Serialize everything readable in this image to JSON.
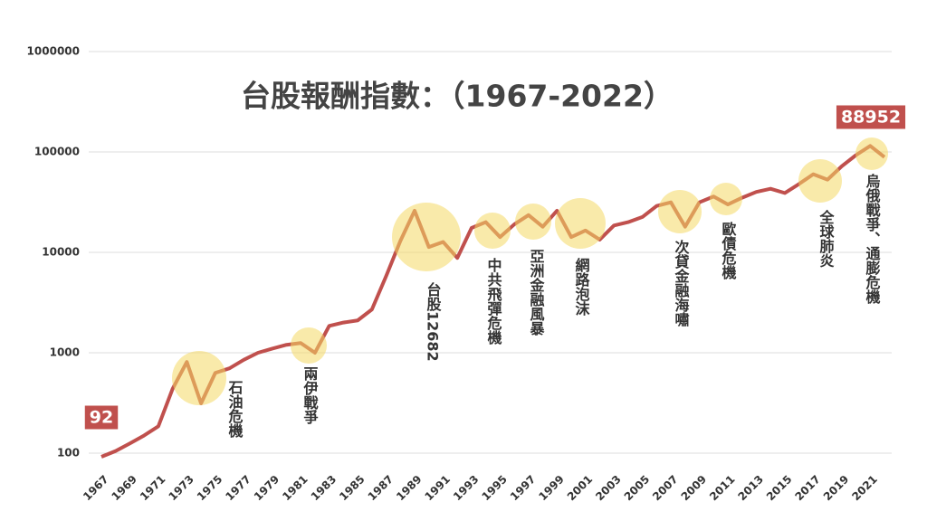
{
  "chart_data": {
    "type": "line",
    "title": "台股報酬指數：（1967-2022）",
    "x": [
      1967,
      1968,
      1969,
      1970,
      1971,
      1972,
      1973,
      1974,
      1975,
      1976,
      1977,
      1978,
      1979,
      1980,
      1981,
      1982,
      1983,
      1984,
      1985,
      1986,
      1987,
      1988,
      1989,
      1990,
      1991,
      1992,
      1993,
      1994,
      1995,
      1996,
      1997,
      1998,
      1999,
      2000,
      2001,
      2002,
      2003,
      2004,
      2005,
      2006,
      2007,
      2008,
      2009,
      2010,
      2011,
      2012,
      2013,
      2014,
      2015,
      2016,
      2017,
      2018,
      2019,
      2020,
      2021,
      2022
    ],
    "values": [
      92,
      105,
      125,
      150,
      185,
      437,
      810,
      313,
      630,
      700,
      850,
      1000,
      1100,
      1200,
      1250,
      1000,
      1850,
      2000,
      2100,
      2700,
      5800,
      13000,
      26000,
      11300,
      12700,
      8800,
      17500,
      20000,
      14200,
      19000,
      23500,
      18000,
      26000,
      14200,
      16500,
      13400,
      18500,
      20000,
      22500,
      29000,
      31500,
      18000,
      31500,
      36000,
      30000,
      35000,
      40000,
      43000,
      39000,
      48000,
      60000,
      53000,
      72000,
      93000,
      115000,
      88952
    ],
    "color": "#c0504d",
    "xlim": [
      1967,
      2022
    ],
    "xticks": [
      1967,
      1969,
      1971,
      1973,
      1975,
      1977,
      1979,
      1981,
      1983,
      1985,
      1987,
      1989,
      1991,
      1993,
      1995,
      1997,
      1999,
      2001,
      2003,
      2005,
      2007,
      2009,
      2011,
      2013,
      2015,
      2017,
      2019,
      2021
    ],
    "ylim": [
      100,
      1000000
    ],
    "yticks": [
      100,
      1000,
      10000,
      100000,
      1000000
    ],
    "log_scale": true,
    "grid": true,
    "annotations": [
      "石油危機",
      "兩伊戰爭",
      "台股12682",
      "中共飛彈危機",
      "亞洲金融風暴",
      "網路泡沫",
      "次貸金融海嘯",
      "歐債危機",
      "全球肺炎",
      "烏俄戰爭、通膨危機"
    ]
  }
}
